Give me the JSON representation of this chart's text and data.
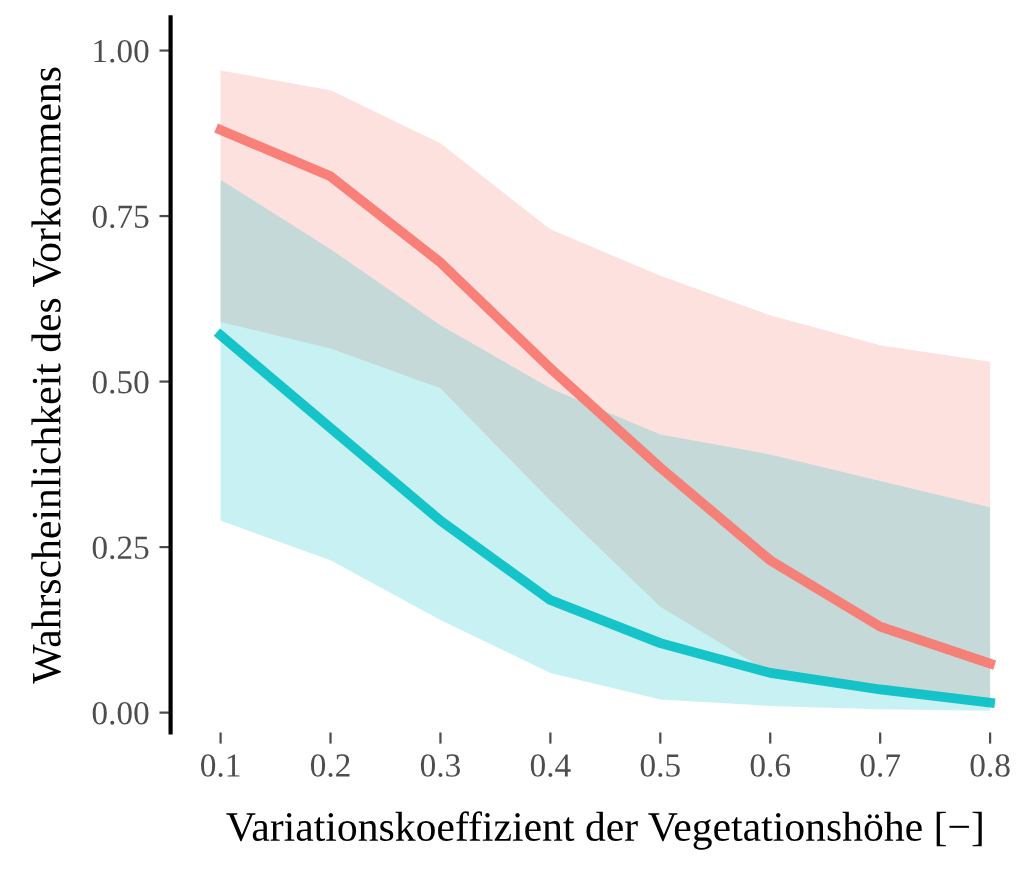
{
  "chart_data": {
    "type": "line",
    "xlabel": "Variationskoeffizient der Vegetationshöhe [−]",
    "ylabel": "Wahrscheinlichkeit des Vorkommens",
    "x": [
      0.1,
      0.2,
      0.3,
      0.4,
      0.5,
      0.6,
      0.7,
      0.8
    ],
    "series": [
      {
        "color": "#f8766d",
        "values": [
          0.88,
          0.81,
          0.68,
          0.52,
          0.37,
          0.23,
          0.13,
          0.074
        ],
        "lower": [
          0.59,
          0.55,
          0.49,
          0.32,
          0.16,
          0.06,
          0.03,
          0.02
        ],
        "upper": [
          0.97,
          0.94,
          0.86,
          0.73,
          0.66,
          0.6,
          0.555,
          0.53
        ]
      },
      {
        "color": "#00bfc4",
        "values": [
          0.57,
          0.43,
          0.29,
          0.17,
          0.105,
          0.06,
          0.035,
          0.015
        ],
        "lower": [
          0.29,
          0.23,
          0.14,
          0.06,
          0.02,
          0.01,
          0.005,
          0.003
        ],
        "upper": [
          0.805,
          0.7,
          0.585,
          0.49,
          0.42,
          0.39,
          0.35,
          0.31
        ]
      }
    ],
    "xlim": [
      0.1,
      0.8
    ],
    "ylim": [
      -0.03,
      1.05
    ],
    "xticks": [
      0.1,
      0.2,
      0.3,
      0.4,
      0.5,
      0.6,
      0.7,
      0.8
    ],
    "yticks": [
      {
        "value": 0,
        "label": "0.00"
      },
      {
        "value": 0.25,
        "label": "0.25"
      },
      {
        "value": 0.5,
        "label": "0.50"
      },
      {
        "value": 0.75,
        "label": "0.75"
      },
      {
        "value": 1,
        "label": "1.00"
      }
    ],
    "grid": false,
    "legend": false
  }
}
